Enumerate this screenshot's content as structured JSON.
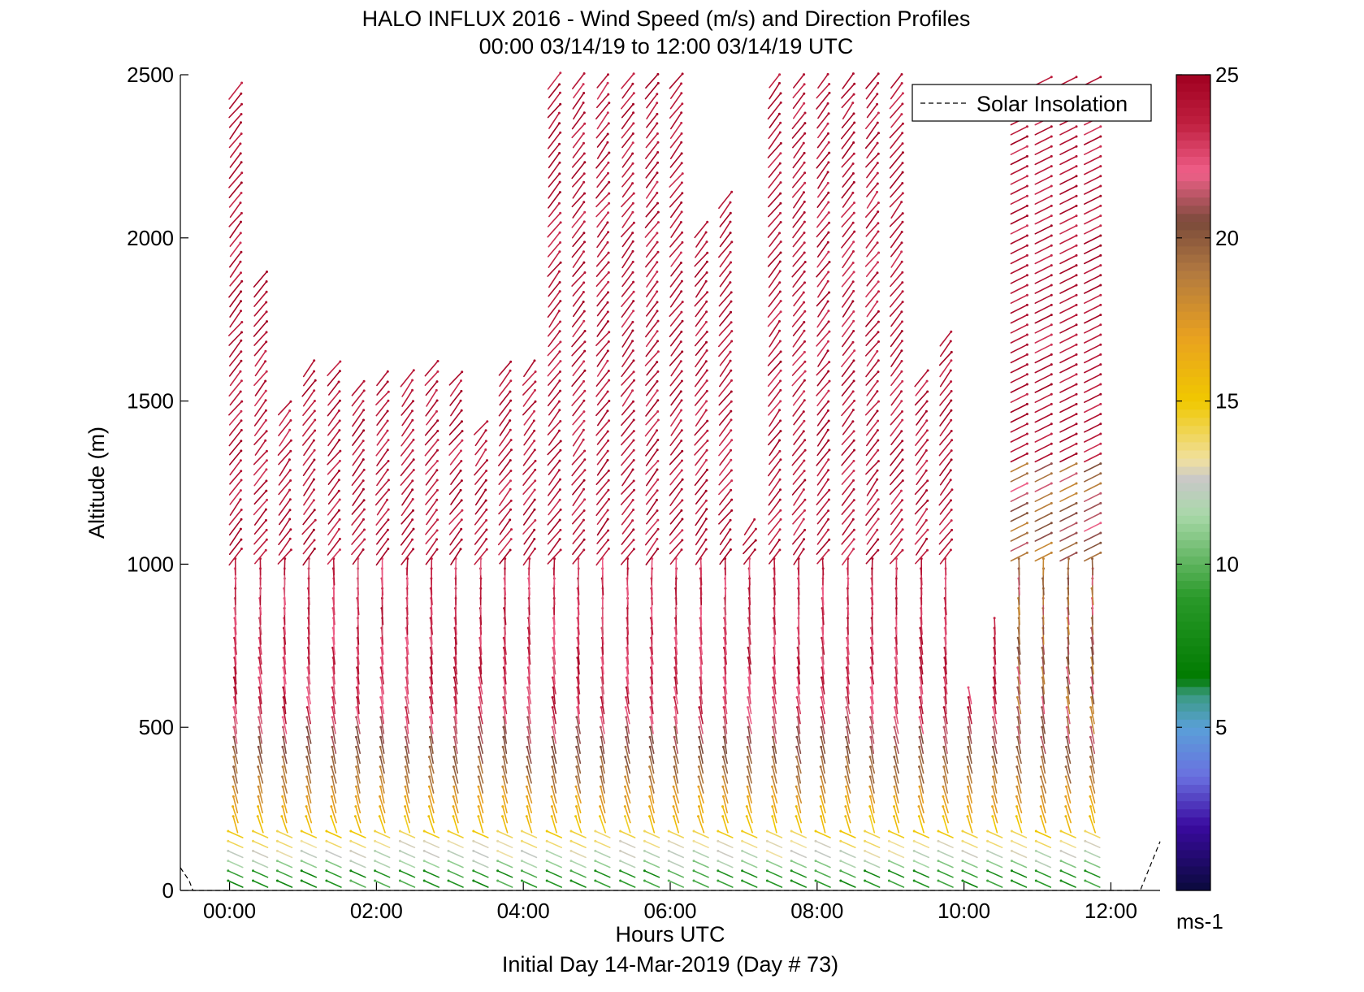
{
  "chart_data": {
    "type": "wind-barb-profile",
    "title": "HALO INFLUX 2016 - Wind Speed (m/s) and Direction Profiles",
    "subtitle": "00:00 03/14/19 to 12:00 03/14/19  UTC",
    "xlabel": "Hours UTC",
    "xlabel2": "Initial Day 14-Mar-2019 (Day # 73)",
    "ylabel": "Altitude (m)",
    "x_unit": "hours",
    "xlim": [
      -0.67,
      12.67
    ],
    "ylim": [
      0,
      2500
    ],
    "x_ticks": [
      {
        "value": 0,
        "label": "00:00"
      },
      {
        "value": 2,
        "label": "02:00"
      },
      {
        "value": 4,
        "label": "04:00"
      },
      {
        "value": 6,
        "label": "06:00"
      },
      {
        "value": 8,
        "label": "08:00"
      },
      {
        "value": 10,
        "label": "10:00"
      },
      {
        "value": 12,
        "label": "12:00"
      }
    ],
    "y_ticks": [
      {
        "value": 0,
        "label": "0"
      },
      {
        "value": 500,
        "label": "500"
      },
      {
        "value": 1000,
        "label": "1000"
      },
      {
        "value": 1500,
        "label": "1500"
      },
      {
        "value": 2000,
        "label": "2000"
      },
      {
        "value": 2500,
        "label": "2500"
      }
    ],
    "legend": {
      "label": "Solar Insolation",
      "style": "dashed",
      "placement": "top-right"
    },
    "colorbar": {
      "min": 0,
      "max": 25,
      "unit": "ms-1",
      "ticks": [
        {
          "value": 5,
          "label": "5"
        },
        {
          "value": 10,
          "label": "10"
        },
        {
          "value": 15,
          "label": "15"
        },
        {
          "value": 20,
          "label": "20"
        },
        {
          "value": 25,
          "label": "25"
        }
      ],
      "stops": [
        {
          "v": 0,
          "c": "#0a0a3c"
        },
        {
          "v": 2,
          "c": "#3a0aa0"
        },
        {
          "v": 3.5,
          "c": "#6a70e0"
        },
        {
          "v": 5,
          "c": "#5aa0d8"
        },
        {
          "v": 6,
          "c": "#3a9a80"
        },
        {
          "v": 6.5,
          "c": "#007a00"
        },
        {
          "v": 9,
          "c": "#2a9a2a"
        },
        {
          "v": 11.5,
          "c": "#a8d8a8"
        },
        {
          "v": 12.6,
          "c": "#c8c8c8"
        },
        {
          "v": 13.2,
          "c": "#f0e0a0"
        },
        {
          "v": 15,
          "c": "#f0c800"
        },
        {
          "v": 17,
          "c": "#e8a020"
        },
        {
          "v": 19,
          "c": "#b07840"
        },
        {
          "v": 20.5,
          "c": "#7a4a3a"
        },
        {
          "v": 22,
          "c": "#f0608a"
        },
        {
          "v": 23.5,
          "c": "#c02040"
        },
        {
          "v": 25,
          "c": "#a00020"
        }
      ]
    },
    "solar_insolation": [
      {
        "x": -0.67,
        "y": 70
      },
      {
        "x": -0.55,
        "y": 30
      },
      {
        "x": -0.5,
        "y": 0
      },
      {
        "x": 12.4,
        "y": 0
      },
      {
        "x": 12.67,
        "y": 150
      }
    ],
    "profiles": [
      {
        "t": 0.08,
        "top": 2450
      },
      {
        "t": 0.42,
        "top": 1870
      },
      {
        "t": 0.75,
        "top": 1500
      },
      {
        "t": 1.08,
        "top": 1610
      },
      {
        "t": 1.42,
        "top": 1610
      },
      {
        "t": 1.75,
        "top": 1540
      },
      {
        "t": 2.08,
        "top": 1580
      },
      {
        "t": 2.42,
        "top": 1590
      },
      {
        "t": 2.75,
        "top": 1600
      },
      {
        "t": 3.08,
        "top": 1580
      },
      {
        "t": 3.42,
        "top": 1440
      },
      {
        "t": 3.75,
        "top": 1620
      },
      {
        "t": 4.08,
        "top": 1600
      },
      {
        "t": 4.42,
        "top": 2500
      },
      {
        "t": 4.75,
        "top": 2500
      },
      {
        "t": 5.08,
        "top": 2500
      },
      {
        "t": 5.42,
        "top": 2500
      },
      {
        "t": 5.75,
        "top": 2500
      },
      {
        "t": 6.08,
        "top": 2500
      },
      {
        "t": 6.42,
        "top": 2040
      },
      {
        "t": 6.75,
        "top": 2130
      },
      {
        "t": 7.08,
        "top": 1130
      },
      {
        "t": 7.42,
        "top": 2500
      },
      {
        "t": 7.75,
        "top": 2500
      },
      {
        "t": 8.08,
        "top": 2500
      },
      {
        "t": 8.42,
        "top": 2500
      },
      {
        "t": 8.75,
        "top": 2500
      },
      {
        "t": 9.08,
        "top": 2500
      },
      {
        "t": 9.42,
        "top": 1580
      },
      {
        "t": 9.75,
        "top": 1700
      },
      {
        "t": 10.08,
        "top": 600
      },
      {
        "t": 10.42,
        "top": 820
      },
      {
        "t": 10.75,
        "top": 2450
      },
      {
        "t": 11.08,
        "top": 2500
      },
      {
        "t": 11.42,
        "top": 2500
      },
      {
        "t": 11.75,
        "top": 2500
      }
    ],
    "notes": "Each profile is a column of wind-direction sticks colored by speed: green near the surface, yellow/orange/brown through the lowest ~500 m, pink/dark red above."
  }
}
